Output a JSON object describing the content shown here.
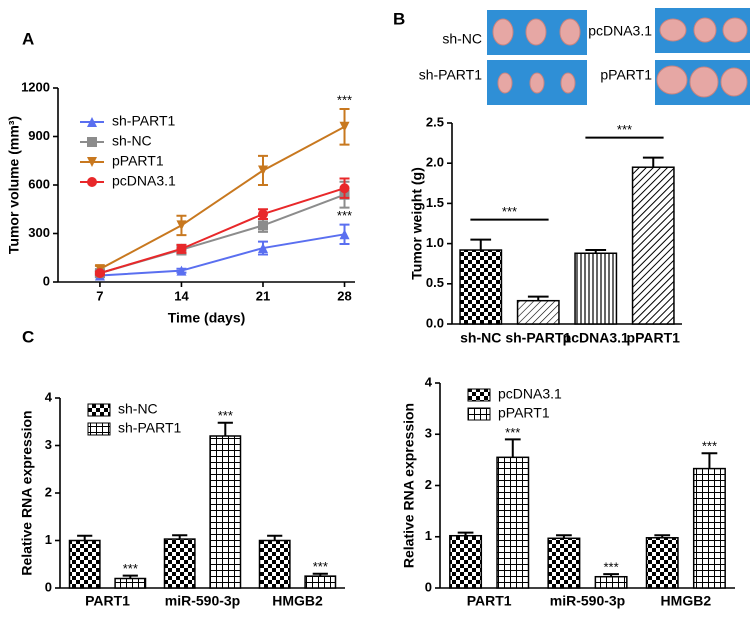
{
  "panel_labels": [
    "A",
    "B",
    "C"
  ],
  "photo_labels": [
    "sh-NC",
    "sh-PART1",
    "pcDNA3.1",
    "pPART1"
  ],
  "chart_data": [
    {
      "type": "line",
      "xlabel": "Time (days)",
      "ylabel": "Tumor volume (mm³)",
      "x": [
        7,
        14,
        21,
        28
      ],
      "xlim": [
        3.4,
        28.9
      ],
      "xticks": [
        7,
        14,
        21,
        28
      ],
      "ylim": [
        0,
        1200
      ],
      "yticks": [
        0,
        300,
        600,
        900,
        1200
      ],
      "series": [
        {
          "name": "sh-PART1",
          "color": "#5a6ff0",
          "marker": "triangle-up",
          "values": [
            40,
            70,
            210,
            295
          ],
          "errors": [
            10,
            12,
            40,
            60
          ],
          "annotations": [
            null,
            null,
            null,
            "***"
          ]
        },
        {
          "name": "sh-NC",
          "color": "#8c8c8c",
          "marker": "square",
          "values": [
            55,
            200,
            350,
            540
          ],
          "errors": [
            15,
            30,
            40,
            80
          ],
          "annotations": [
            null,
            null,
            null,
            null
          ]
        },
        {
          "name": "pPART1",
          "color": "#c8781f",
          "marker": "triangle-down",
          "values": [
            80,
            350,
            690,
            960
          ],
          "errors": [
            20,
            60,
            90,
            110
          ],
          "annotations": [
            null,
            null,
            null,
            "***"
          ]
        },
        {
          "name": "pcDNA3.1",
          "color": "#e8282a",
          "marker": "circle",
          "values": [
            55,
            205,
            420,
            580
          ],
          "errors": [
            10,
            25,
            30,
            60
          ],
          "annotations": [
            null,
            null,
            null,
            null
          ]
        }
      ]
    },
    {
      "type": "bar",
      "ylabel": "Tumor weight (g)",
      "categories": [
        "sh-NC",
        "sh-PART1",
        "pcDNA3.1",
        "pPART1"
      ],
      "values": [
        0.92,
        0.29,
        0.88,
        1.95
      ],
      "errors": [
        0.13,
        0.05,
        0.04,
        0.12
      ],
      "patterns": [
        "checker",
        "diag",
        "vlines",
        "diag-thick"
      ],
      "ylim": [
        0,
        2.5
      ],
      "yticks": [
        {
          "value": 0,
          "label": "0.0"
        },
        0.5,
        {
          "value": 1,
          "label": "1.0"
        },
        1.5,
        {
          "value": 2,
          "label": "2.0"
        },
        2.5
      ],
      "comparisons": [
        {
          "pair": [
            0,
            1
          ],
          "label": "***"
        },
        {
          "pair": [
            2,
            3
          ],
          "label": "***"
        }
      ]
    },
    {
      "type": "grouped-bar",
      "ylabel": "Relative RNA expression",
      "categories": [
        "PART1",
        "miR-590-3p",
        "HMGB2"
      ],
      "ylim": [
        0,
        4
      ],
      "yticks": [
        0,
        1,
        2,
        3,
        4
      ],
      "series": [
        {
          "name": "sh-NC",
          "pattern": "checker",
          "values": [
            1.0,
            1.03,
            1.0
          ],
          "errors": [
            0.1,
            0.08,
            0.1
          ],
          "annotations": [
            null,
            null,
            null
          ]
        },
        {
          "name": "sh-PART1",
          "pattern": "grid",
          "values": [
            0.2,
            3.2,
            0.25
          ],
          "errors": [
            0.06,
            0.28,
            0.05
          ],
          "annotations": [
            "***",
            "***",
            "***"
          ]
        }
      ]
    },
    {
      "type": "grouped-bar",
      "ylabel": "Relative RNA expression",
      "categories": [
        "PART1",
        "miR-590-3p",
        "HMGB2"
      ],
      "ylim": [
        0,
        4
      ],
      "yticks": [
        0,
        1,
        2,
        3,
        4
      ],
      "series": [
        {
          "name": "pcDNA3.1",
          "pattern": "checker",
          "values": [
            1.02,
            0.97,
            0.98
          ],
          "errors": [
            0.06,
            0.06,
            0.05
          ],
          "annotations": [
            null,
            null,
            null
          ]
        },
        {
          "name": "pPART1",
          "pattern": "grid",
          "values": [
            2.55,
            0.22,
            2.33
          ],
          "errors": [
            0.35,
            0.05,
            0.3
          ],
          "annotations": [
            "***",
            "***",
            "***"
          ]
        }
      ]
    }
  ]
}
